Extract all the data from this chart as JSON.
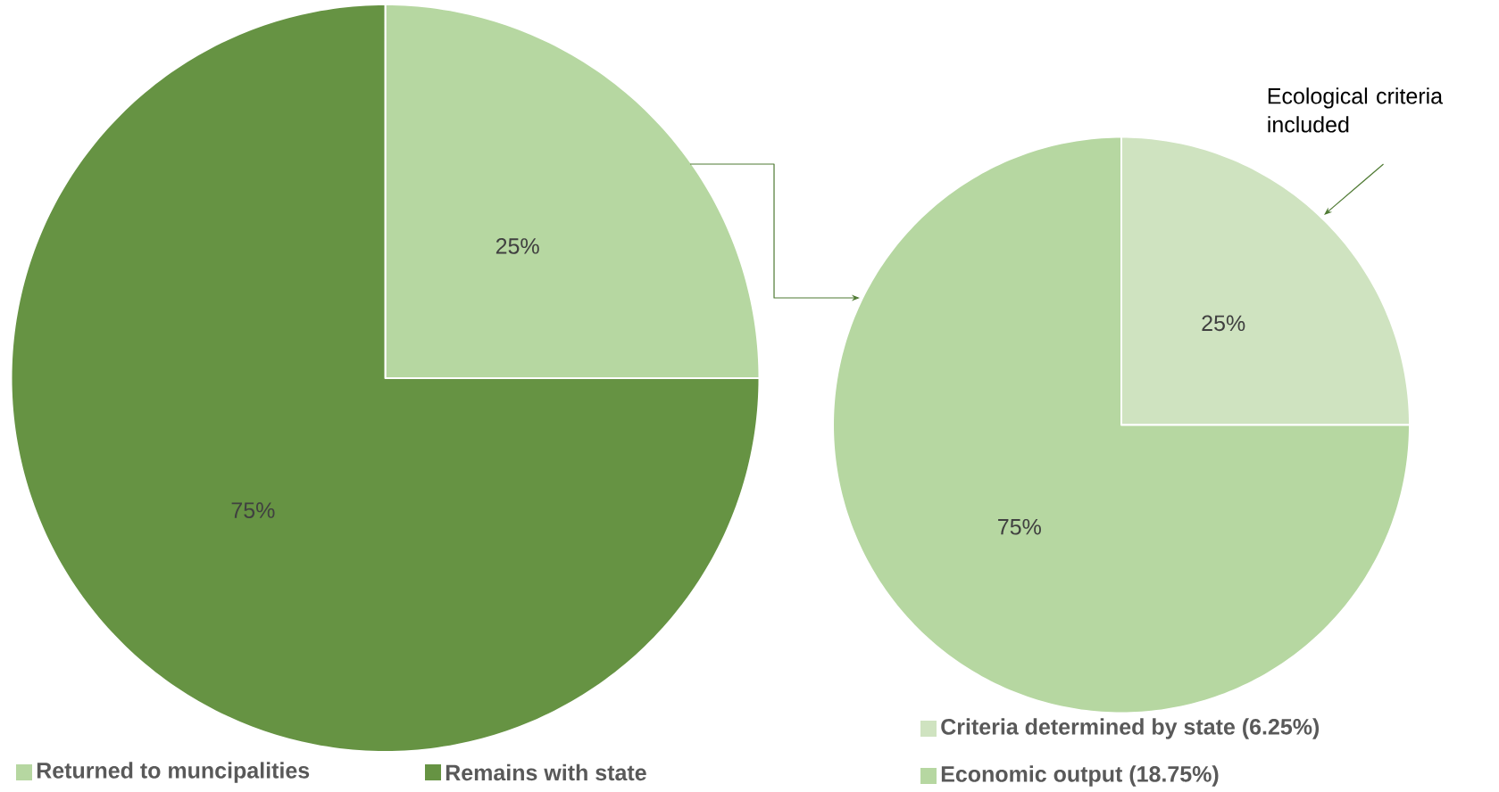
{
  "chart_data": [
    {
      "type": "pie",
      "categories": [
        "Returned to muncipalities",
        "Remains with state"
      ],
      "values": [
        25,
        75
      ],
      "colors": [
        "#b6d7a1",
        "#669343"
      ],
      "value_labels": [
        "25%",
        "75%"
      ],
      "legend": "bottom"
    },
    {
      "type": "pie",
      "categories": [
        "Criteria determined by state (6.25%)",
        "Economic output (18.75%)"
      ],
      "values": [
        25,
        75
      ],
      "colors": [
        "#cfe3c0",
        "#b6d7a1"
      ],
      "value_labels": [
        "25%",
        "75%"
      ],
      "legend": "bottom",
      "annotations": [
        "Ecological criteria included"
      ]
    }
  ]
}
